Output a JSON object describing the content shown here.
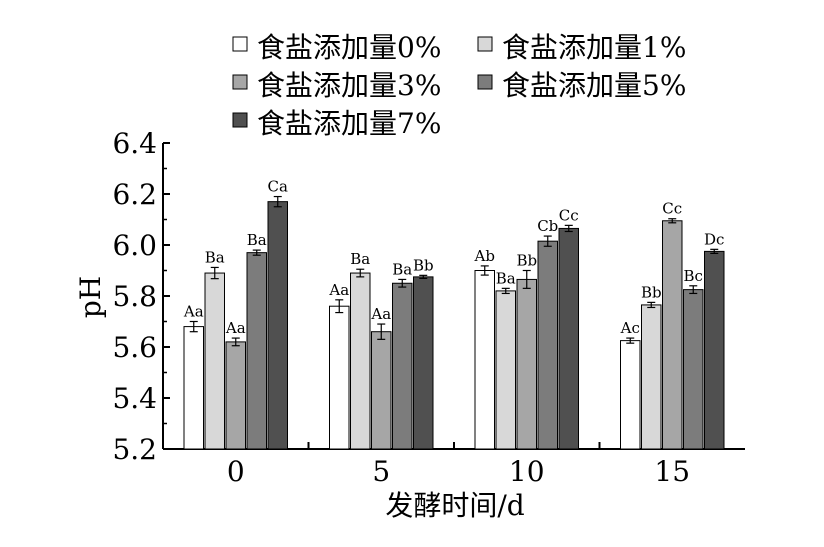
{
  "chart_data": {
    "type": "bar",
    "xlabel": "发酵时间/d",
    "ylabel": "pH",
    "ylim": [
      5.2,
      6.4
    ],
    "yticks": [
      "5.2",
      "5.4",
      "5.6",
      "5.8",
      "6.0",
      "6.2",
      "6.4"
    ],
    "categories": [
      "0",
      "5",
      "10",
      "15"
    ],
    "legend_position": "top",
    "series": [
      {
        "name": "食盐添加量0%",
        "color": "#ffffff",
        "values": [
          5.68,
          5.76,
          5.9,
          5.625
        ],
        "errors": [
          0.02,
          0.025,
          0.018,
          0.01
        ],
        "labels": [
          "Aa",
          "Aa",
          "Ab",
          "Ac"
        ]
      },
      {
        "name": "食盐添加量1%",
        "color": "#d8d8d8",
        "values": [
          5.89,
          5.89,
          5.82,
          5.765
        ],
        "errors": [
          0.022,
          0.015,
          0.01,
          0.01
        ],
        "labels": [
          "Ba",
          "Ba",
          "Ba",
          "Bb"
        ]
      },
      {
        "name": "食盐添加量3%",
        "color": "#a6a6a6",
        "values": [
          5.62,
          5.66,
          5.865,
          6.095
        ],
        "errors": [
          0.015,
          0.03,
          0.035,
          0.008
        ],
        "labels": [
          "Aa",
          "Aa",
          "Bb",
          "Cc"
        ]
      },
      {
        "name": "食盐添加量5%",
        "color": "#7c7c7c",
        "values": [
          5.97,
          5.85,
          6.015,
          5.825
        ],
        "errors": [
          0.01,
          0.015,
          0.02,
          0.015
        ],
        "labels": [
          "Ba",
          "Ba",
          "Cb",
          "Bc"
        ]
      },
      {
        "name": "食盐添加量7%",
        "color": "#505050",
        "values": [
          6.17,
          5.875,
          6.065,
          5.975
        ],
        "errors": [
          0.02,
          0.006,
          0.012,
          0.008
        ],
        "labels": [
          "Ca",
          "Bb",
          "Cc",
          "Dc"
        ]
      }
    ]
  }
}
